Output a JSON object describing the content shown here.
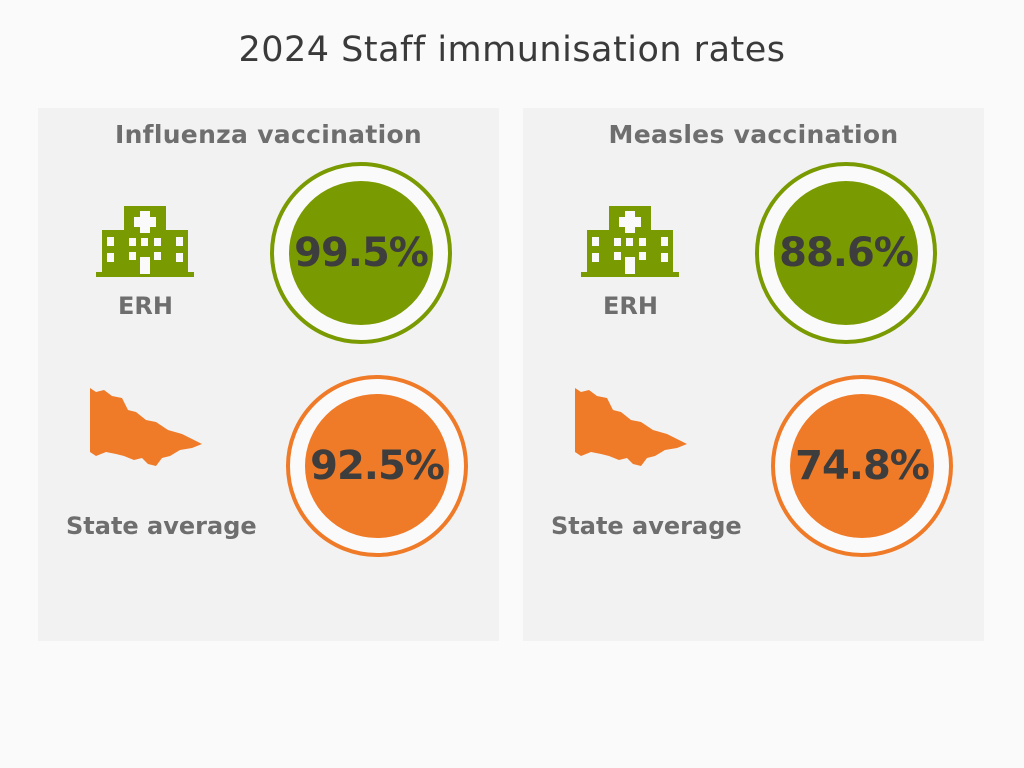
{
  "title": "2024 Staff immunisation rates",
  "colors": {
    "green": "#7a9a01",
    "orange": "#ef7a28",
    "text": "#3d3d3d",
    "label": "#6e6e6e"
  },
  "panels": [
    {
      "heading": "Influenza vaccination",
      "site": {
        "label": "ERH",
        "icon": "hospital-icon",
        "value": "99.5%"
      },
      "state": {
        "label": "State average",
        "icon": "victoria-map-icon",
        "value": "92.5%"
      }
    },
    {
      "heading": "Measles vaccination",
      "site": {
        "label": "ERH",
        "icon": "hospital-icon",
        "value": "88.6%"
      },
      "state": {
        "label": "State average",
        "icon": "victoria-map-icon",
        "value": "74.8%"
      }
    }
  ]
}
